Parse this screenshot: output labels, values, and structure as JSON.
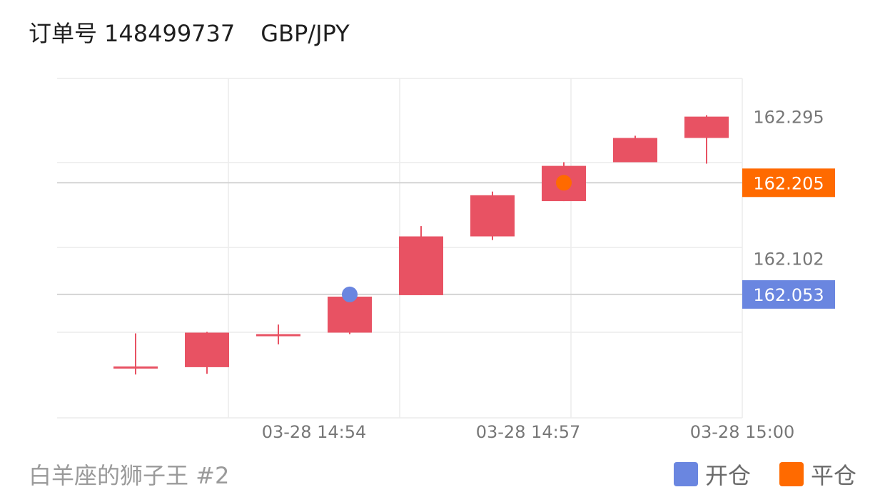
{
  "header": {
    "order_label": "订单号",
    "order_number": "148499737",
    "symbol": "GBP/JPY"
  },
  "footer": {
    "title": "白羊座的狮子王 #2"
  },
  "legend": {
    "open": {
      "label": "开仓",
      "color": "#6a86e0"
    },
    "close": {
      "label": "平仓",
      "color": "#ff6a00"
    }
  },
  "colors": {
    "candle": "#e85263",
    "grid": "#ececec",
    "tick_text": "#777777",
    "reference_line": "#d4d4d4"
  },
  "chart_data": {
    "type": "candlestick",
    "x_tick_labels": [
      "03-28 14:54",
      "03-28 14:57",
      "03-28 15:00"
    ],
    "y_tick_labels": [
      "162.295",
      "162.102"
    ],
    "ylim": [
      161.885,
      162.347
    ],
    "candles": [
      {
        "index": 0,
        "open": 161.955,
        "high": 162.0,
        "low": 161.944,
        "close": 161.955
      },
      {
        "index": 1,
        "open": 161.954,
        "high": 162.002,
        "low": 161.945,
        "close": 162.001
      },
      {
        "index": 2,
        "open": 161.999,
        "high": 162.012,
        "low": 161.985,
        "close": 161.997
      },
      {
        "index": 3,
        "open": 162.001,
        "high": 162.051,
        "low": 161.999,
        "close": 162.05
      },
      {
        "index": 4,
        "open": 162.052,
        "high": 162.146,
        "low": 162.052,
        "close": 162.132
      },
      {
        "index": 5,
        "open": 162.132,
        "high": 162.193,
        "low": 162.127,
        "close": 162.188
      },
      {
        "index": 6,
        "open": 162.18,
        "high": 162.233,
        "low": 162.18,
        "close": 162.228
      },
      {
        "index": 7,
        "open": 162.233,
        "high": 162.269,
        "low": 162.234,
        "close": 162.266
      },
      {
        "index": 8,
        "open": 162.266,
        "high": 162.297,
        "low": 162.231,
        "close": 162.295
      }
    ],
    "markers": [
      {
        "type": "open",
        "candle_index": 3,
        "price": 162.053,
        "label": "162.053"
      },
      {
        "type": "close",
        "candle_index": 6,
        "price": 162.205,
        "label": "162.205"
      }
    ],
    "grid": true
  }
}
